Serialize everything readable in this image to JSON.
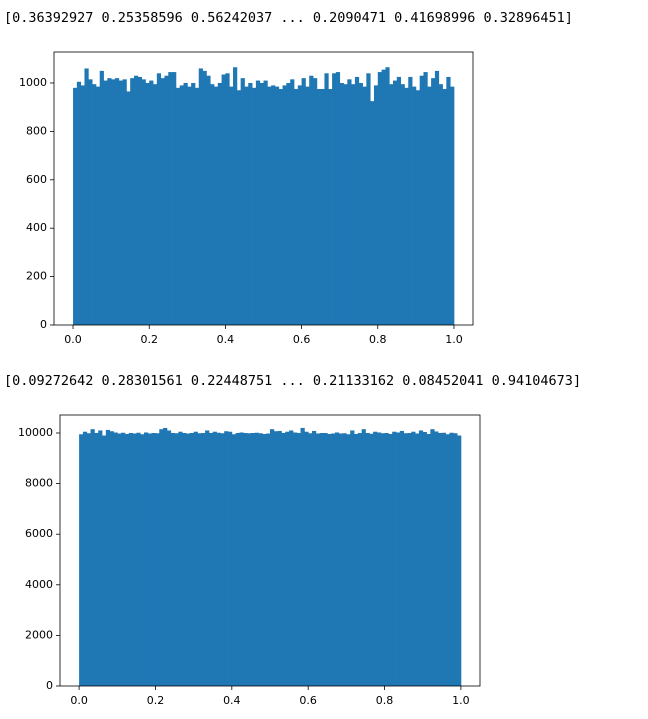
{
  "output_text": [
    "[0.36392927 0.25358596 0.56242037 ... 0.2090471  0.41698996 0.32896451]",
    "[0.09272642 0.28301561 0.22448751 ... 0.21133162 0.08452041 0.94104673]"
  ],
  "chart_data": [
    {
      "type": "histogram",
      "color": "#1f77b4",
      "grid": false,
      "bins": [
        0,
        0.01,
        0.02,
        0.03,
        0.04,
        0.05,
        0.06,
        0.07,
        0.08,
        0.09,
        0.1,
        0.11,
        0.12,
        0.13,
        0.14,
        0.15,
        0.16,
        0.17,
        0.18,
        0.19,
        0.2,
        0.21,
        0.22,
        0.23,
        0.24,
        0.25,
        0.26,
        0.27,
        0.28,
        0.29,
        0.3,
        0.31,
        0.32,
        0.33,
        0.34,
        0.35,
        0.36,
        0.37,
        0.38,
        0.39,
        0.4,
        0.41,
        0.42,
        0.43,
        0.44,
        0.45,
        0.46,
        0.47,
        0.48,
        0.49,
        0.5,
        0.51,
        0.52,
        0.53,
        0.54,
        0.55,
        0.56,
        0.57,
        0.58,
        0.59,
        0.6,
        0.61,
        0.62,
        0.63,
        0.64,
        0.65,
        0.66,
        0.67,
        0.68,
        0.69,
        0.7,
        0.71,
        0.72,
        0.73,
        0.74,
        0.75,
        0.76,
        0.77,
        0.78,
        0.79,
        0.8,
        0.81,
        0.82,
        0.83,
        0.84,
        0.85,
        0.86,
        0.87,
        0.88,
        0.89,
        0.9,
        0.91,
        0.92,
        0.93,
        0.94,
        0.95,
        0.96,
        0.97,
        0.98,
        0.99,
        1
      ],
      "values": [
        980,
        1005,
        990,
        1060,
        1015,
        995,
        985,
        1050,
        1010,
        1020,
        1015,
        1020,
        1010,
        1015,
        965,
        1020,
        1030,
        1025,
        1015,
        1000,
        1010,
        995,
        1040,
        1020,
        1030,
        1045,
        1045,
        980,
        990,
        1000,
        985,
        1000,
        980,
        1060,
        1050,
        1030,
        995,
        985,
        1000,
        1035,
        1040,
        985,
        1065,
        970,
        1020,
        985,
        1000,
        980,
        1010,
        1000,
        1010,
        985,
        990,
        985,
        975,
        990,
        1000,
        1015,
        975,
        990,
        1020,
        985,
        1030,
        1020,
        975,
        975,
        1040,
        975,
        1040,
        1045,
        1000,
        995,
        1015,
        995,
        1025,
        1000,
        985,
        1040,
        925,
        990,
        1045,
        1055,
        1065,
        995,
        1010,
        1025,
        995,
        980,
        1025,
        985,
        970,
        1030,
        1045,
        985,
        1020,
        1050,
        995,
        975,
        1025,
        985
      ],
      "xlim": [
        -0.05,
        1.05
      ],
      "xticks": [
        {
          "value": 0,
          "label": "0.0"
        },
        0.2,
        0.4,
        0.6,
        0.8,
        {
          "value": 1,
          "label": "1.0"
        }
      ],
      "ylim": [
        0,
        1128
      ],
      "yticks": [
        0,
        200,
        400,
        600,
        800,
        1000
      ]
    },
    {
      "type": "histogram",
      "color": "#1f77b4",
      "grid": false,
      "bins": [
        0,
        0.01,
        0.02,
        0.03,
        0.04,
        0.05,
        0.06,
        0.07,
        0.08,
        0.09,
        0.1,
        0.11,
        0.12,
        0.13,
        0.14,
        0.15,
        0.16,
        0.17,
        0.18,
        0.19,
        0.2,
        0.21,
        0.22,
        0.23,
        0.24,
        0.25,
        0.26,
        0.27,
        0.28,
        0.29,
        0.3,
        0.31,
        0.32,
        0.33,
        0.34,
        0.35,
        0.36,
        0.37,
        0.38,
        0.39,
        0.4,
        0.41,
        0.42,
        0.43,
        0.44,
        0.45,
        0.46,
        0.47,
        0.48,
        0.49,
        0.5,
        0.51,
        0.52,
        0.53,
        0.54,
        0.55,
        0.56,
        0.57,
        0.58,
        0.59,
        0.6,
        0.61,
        0.62,
        0.63,
        0.64,
        0.65,
        0.66,
        0.67,
        0.68,
        0.69,
        0.7,
        0.71,
        0.72,
        0.73,
        0.74,
        0.75,
        0.76,
        0.77,
        0.78,
        0.79,
        0.8,
        0.81,
        0.82,
        0.83,
        0.84,
        0.85,
        0.86,
        0.87,
        0.88,
        0.89,
        0.9,
        0.91,
        0.92,
        0.93,
        0.94,
        0.95,
        0.96,
        0.97,
        0.98,
        0.99,
        1
      ],
      "values": [
        9950,
        10050,
        9990,
        10150,
        10000,
        10100,
        9900,
        10120,
        10070,
        10020,
        9980,
        10010,
        9960,
        10000,
        9980,
        10010,
        9950,
        10020,
        9980,
        10000,
        9990,
        10150,
        10200,
        10100,
        10000,
        9990,
        10050,
        10000,
        9980,
        10000,
        10050,
        9990,
        10000,
        10100,
        10000,
        10050,
        10010,
        9990,
        10070,
        10050,
        9950,
        10000,
        10020,
        10000,
        9990,
        10000,
        10010,
        9990,
        9960,
        9980,
        10150,
        10070,
        10080,
        10000,
        10050,
        10100,
        10020,
        10000,
        10200,
        10050,
        9990,
        10080,
        9980,
        10000,
        10000,
        9960,
        9980,
        10020,
        9980,
        9990,
        9950,
        10100,
        9960,
        10000,
        10150,
        10000,
        9970,
        10050,
        10020,
        9990,
        10000,
        9960,
        10050,
        10020,
        10080,
        9990,
        10000,
        10050,
        9980,
        10100,
        10040,
        9960,
        10150,
        10060,
        10000,
        10010,
        9950,
        10010,
        9990,
        9900
      ],
      "xlim": [
        -0.05,
        1.05
      ],
      "xticks": [
        {
          "value": 0,
          "label": "0.0"
        },
        0.2,
        0.4,
        0.6,
        0.8,
        {
          "value": 1,
          "label": "1.0"
        }
      ],
      "ylim": [
        0,
        10711
      ],
      "yticks": [
        0,
        2000,
        4000,
        6000,
        8000,
        10000
      ]
    }
  ]
}
